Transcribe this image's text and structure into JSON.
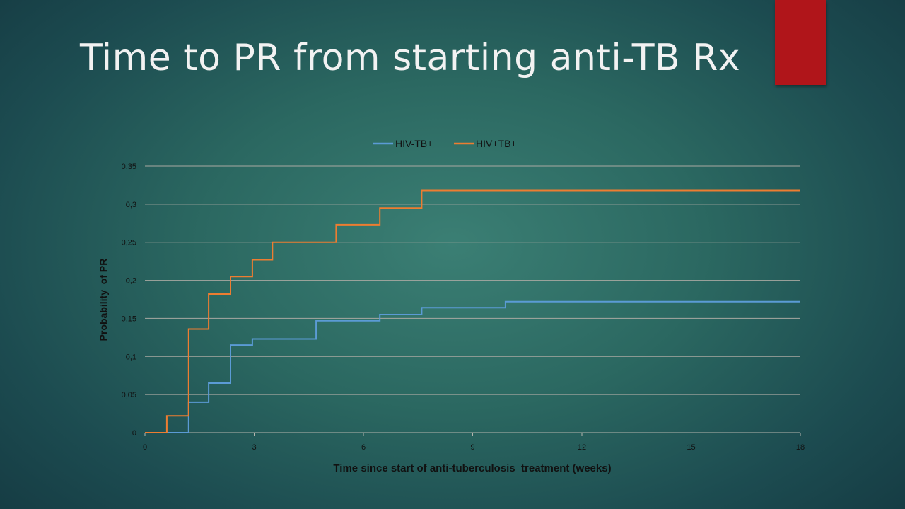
{
  "slide": {
    "title": "Time to PR from starting anti-TB Rx",
    "accent_color": "#b0151a"
  },
  "chart_data": {
    "type": "line",
    "step": true,
    "title": "",
    "xlabel": "Time since start of anti-tuberculosis  treatment (weeks)",
    "ylabel": "Probability  of PR",
    "xlim": [
      0,
      18
    ],
    "ylim": [
      0,
      0.35
    ],
    "x_ticks": [
      0,
      3,
      6,
      9,
      12,
      15,
      18
    ],
    "x_tick_labels": [
      "0",
      "3",
      "6",
      "9",
      "12",
      "15",
      "18"
    ],
    "y_ticks": [
      0,
      0.05,
      0.1,
      0.15,
      0.2,
      0.25,
      0.3,
      0.35
    ],
    "y_tick_labels": [
      "0",
      "0,05",
      "0,1",
      "0,15",
      "0,2",
      "0,25",
      "0,3",
      "0,35"
    ],
    "grid": "horizontal",
    "legend_position": "top",
    "series": [
      {
        "name": "HIV-TB+",
        "color": "#5b9bd5",
        "x": [
          0,
          1.2,
          1.2,
          1.75,
          1.75,
          2.35,
          2.35,
          2.95,
          2.95,
          4.7,
          4.7,
          6.45,
          6.45,
          7.6,
          7.6,
          9.9,
          9.9,
          18
        ],
        "y": [
          0,
          0,
          0.04,
          0.04,
          0.065,
          0.065,
          0.115,
          0.115,
          0.123,
          0.123,
          0.147,
          0.147,
          0.155,
          0.155,
          0.164,
          0.164,
          0.172,
          0.172
        ]
      },
      {
        "name": "HIV+TB+",
        "color": "#ed7d31",
        "x": [
          0,
          0.6,
          0.6,
          1.2,
          1.2,
          1.75,
          1.75,
          2.35,
          2.35,
          2.95,
          2.95,
          3.5,
          3.5,
          5.25,
          5.25,
          6.45,
          6.45,
          7.6,
          7.6,
          18
        ],
        "y": [
          0,
          0,
          0.022,
          0.022,
          0.136,
          0.136,
          0.182,
          0.182,
          0.205,
          0.205,
          0.227,
          0.227,
          0.25,
          0.25,
          0.273,
          0.273,
          0.295,
          0.295,
          0.318,
          0.318
        ]
      }
    ]
  }
}
